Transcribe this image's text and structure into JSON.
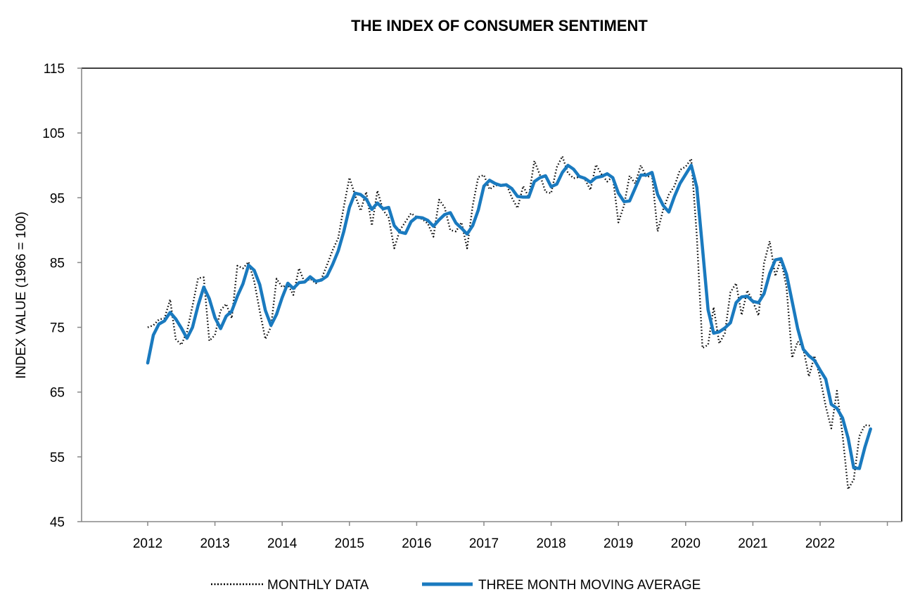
{
  "chart_data": {
    "type": "line",
    "title": "THE INDEX OF CONSUMER SENTIMENT",
    "ylabel": "INDEX VALUE (1966 = 100)",
    "xlabel": "",
    "ylim": [
      45,
      115
    ],
    "yticks": [
      45,
      55,
      65,
      75,
      85,
      95,
      105,
      115
    ],
    "xticks": [
      "2012",
      "2013",
      "2014",
      "2015",
      "2016",
      "2017",
      "2018",
      "2019",
      "2020",
      "2021",
      "2022"
    ],
    "grid": false,
    "legend_position": "bottom",
    "x_start": "2012-01",
    "x_end": "2022-10",
    "series": [
      {
        "name": "MONTHLY DATA",
        "style": "dotted",
        "color": "#000000",
        "values": [
          75.0,
          75.3,
          76.2,
          76.4,
          79.3,
          73.2,
          72.3,
          74.3,
          78.3,
          82.6,
          82.7,
          72.9,
          73.8,
          77.6,
          78.6,
          76.4,
          84.5,
          84.1,
          85.1,
          82.1,
          77.5,
          73.2,
          75.1,
          82.5,
          81.2,
          81.6,
          80.0,
          84.1,
          81.9,
          82.5,
          81.8,
          82.5,
          84.6,
          86.9,
          88.8,
          93.6,
          98.1,
          95.4,
          93.0,
          95.9,
          90.7,
          96.1,
          93.1,
          91.9,
          87.2,
          90.0,
          91.3,
          92.6,
          92.0,
          91.7,
          91.0,
          89.0,
          94.7,
          93.5,
          90.0,
          89.8,
          91.2,
          87.2,
          93.8,
          98.2,
          98.5,
          96.3,
          96.9,
          97.0,
          97.1,
          95.0,
          93.4,
          96.8,
          95.1,
          100.7,
          98.5,
          95.9,
          95.7,
          99.7,
          101.4,
          98.8,
          98.0,
          98.2,
          97.9,
          96.2,
          100.1,
          98.6,
          97.5,
          98.3,
          91.2,
          93.8,
          98.4,
          97.2,
          100.0,
          98.2,
          98.4,
          89.8,
          93.2,
          95.5,
          96.8,
          99.3,
          99.8,
          101.0,
          89.1,
          71.8,
          72.3,
          78.1,
          72.5,
          74.1,
          80.4,
          81.8,
          76.9,
          80.7,
          79.0,
          76.8,
          84.9,
          88.3,
          82.9,
          85.5,
          81.2,
          70.3,
          72.8,
          71.7,
          67.4,
          70.6,
          67.2,
          62.8,
          59.4,
          65.2,
          58.4,
          50.0,
          51.5,
          58.2,
          59.9,
          59.8
        ]
      },
      {
        "name": "THREE MONTH MOVING AVERAGE",
        "style": "solid",
        "color": "#1a7abf",
        "values": [
          69.5,
          73.8,
          75.5,
          76.0,
          77.3,
          76.3,
          74.9,
          73.3,
          75.0,
          78.4,
          81.2,
          79.4,
          76.5,
          74.8,
          76.7,
          77.5,
          79.8,
          81.7,
          84.6,
          83.8,
          81.6,
          77.6,
          75.3,
          77.0,
          79.6,
          81.8,
          81.0,
          81.9,
          82.0,
          82.8,
          82.1,
          82.3,
          82.9,
          84.7,
          86.8,
          89.8,
          93.5,
          95.7,
          95.5,
          94.8,
          93.2,
          94.2,
          93.3,
          93.5,
          90.7,
          89.7,
          89.5,
          91.3,
          92.0,
          91.9,
          91.5,
          90.6,
          91.6,
          92.4,
          92.7,
          91.1,
          90.3,
          89.4,
          90.7,
          93.1,
          96.8,
          97.7,
          97.2,
          96.9,
          97.0,
          96.4,
          95.2,
          95.1,
          95.1,
          97.5,
          98.1,
          98.4,
          96.7,
          97.1,
          98.9,
          100.0,
          99.4,
          98.3,
          98.0,
          97.4,
          98.1,
          98.3,
          98.7,
          98.1,
          95.7,
          94.4,
          94.5,
          96.5,
          98.5,
          98.5,
          98.9,
          95.5,
          93.8,
          92.8,
          95.2,
          97.2,
          98.6,
          100.0,
          96.6,
          87.3,
          77.7,
          74.1,
          74.3,
          74.9,
          75.7,
          78.8,
          79.7,
          79.8,
          79.0,
          78.8,
          80.2,
          83.3,
          85.4,
          85.6,
          83.2,
          79.0,
          74.8,
          71.6,
          70.6,
          69.9,
          68.4,
          67.0,
          63.1,
          62.5,
          61.0,
          57.9,
          53.3,
          53.2,
          56.5,
          59.3
        ]
      }
    ]
  },
  "legend": {
    "monthly_label": "MONTHLY DATA",
    "average_label": "THREE MONTH MOVING AVERAGE"
  }
}
